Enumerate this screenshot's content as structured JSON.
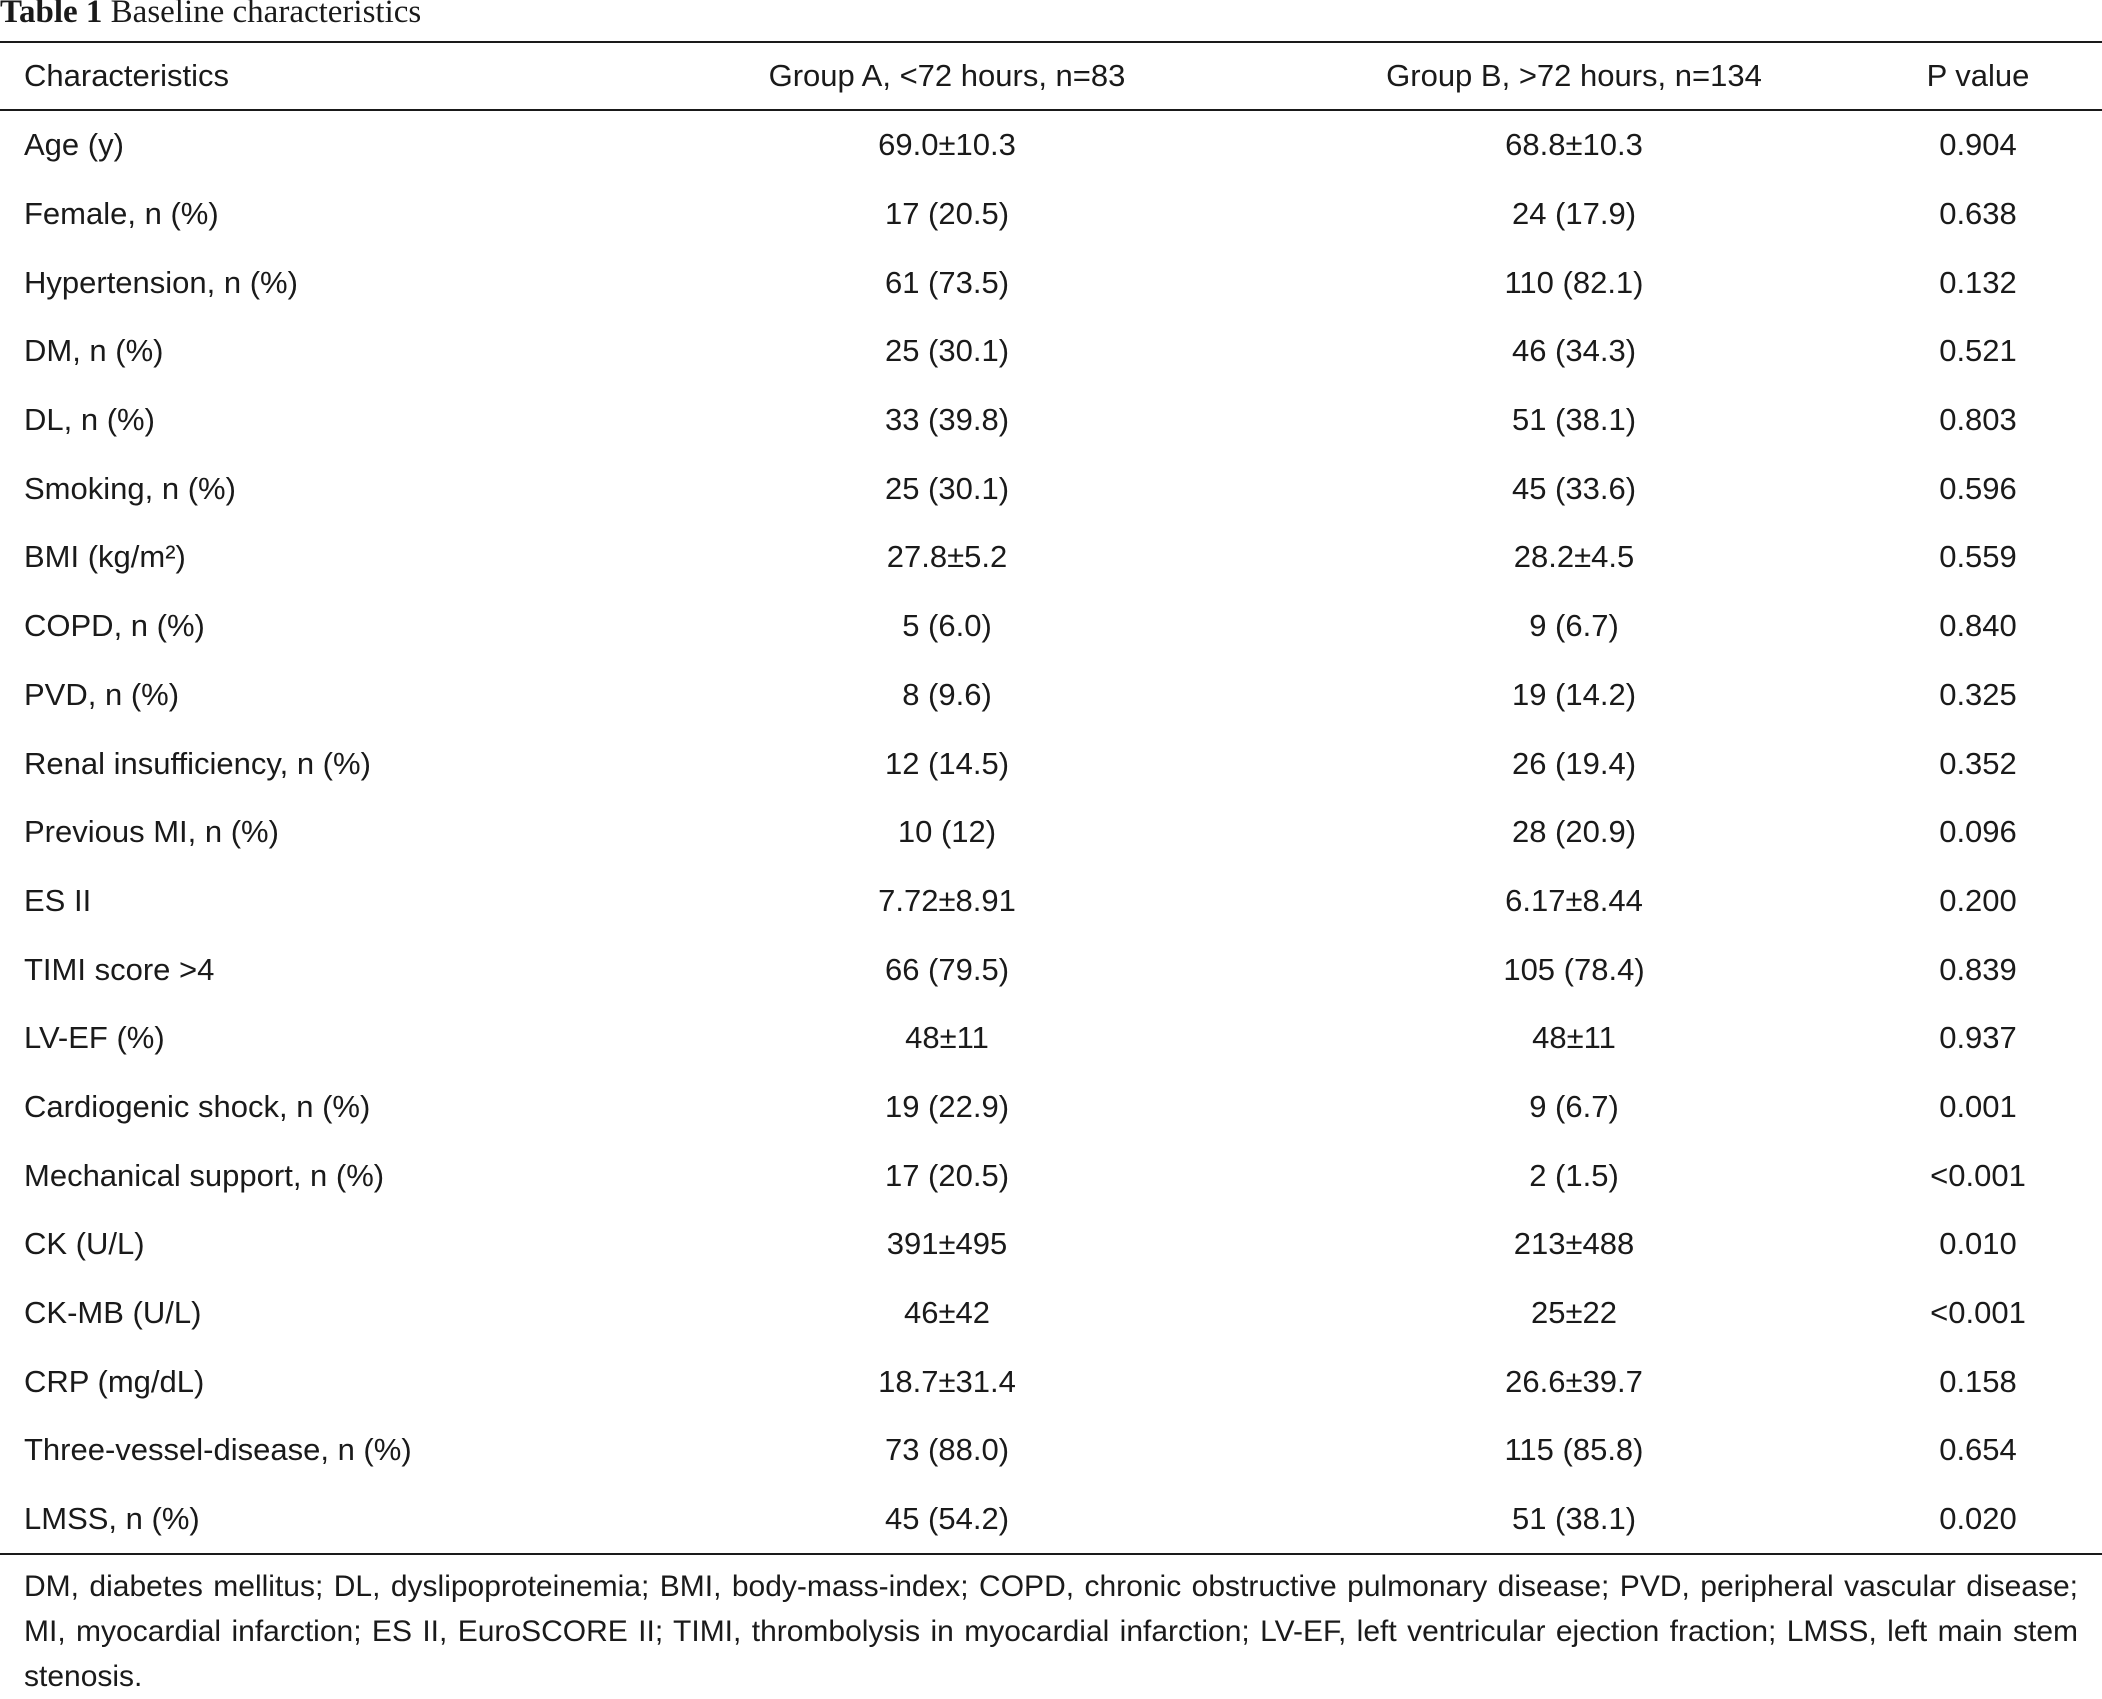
{
  "caption": {
    "label": "Table 1",
    "text": "Baseline characteristics"
  },
  "table": {
    "headers": [
      "Characteristics",
      "Group A, <72 hours, n=83",
      "Group B, >72 hours, n=134",
      "P value"
    ],
    "rows": [
      [
        "Age (y)",
        "69.0±10.3",
        "68.8±10.3",
        "0.904"
      ],
      [
        "Female, n (%)",
        "17 (20.5)",
        "24 (17.9)",
        "0.638"
      ],
      [
        "Hypertension, n (%)",
        "61 (73.5)",
        "110 (82.1)",
        "0.132"
      ],
      [
        "DM, n (%)",
        "25 (30.1)",
        "46 (34.3)",
        "0.521"
      ],
      [
        "DL, n (%)",
        "33 (39.8)",
        "51 (38.1)",
        "0.803"
      ],
      [
        "Smoking, n (%)",
        "25 (30.1)",
        "45 (33.6)",
        "0.596"
      ],
      [
        "BMI (kg/m²)",
        "27.8±5.2",
        "28.2±4.5",
        "0.559"
      ],
      [
        "COPD, n (%)",
        "5 (6.0)",
        "9 (6.7)",
        "0.840"
      ],
      [
        "PVD, n (%)",
        "8 (9.6)",
        "19 (14.2)",
        "0.325"
      ],
      [
        "Renal insufficiency, n (%)",
        "12 (14.5)",
        "26 (19.4)",
        "0.352"
      ],
      [
        "Previous MI, n (%)",
        "10 (12)",
        "28 (20.9)",
        "0.096"
      ],
      [
        "ES II",
        "7.72±8.91",
        "6.17±8.44",
        "0.200"
      ],
      [
        "TIMI score >4",
        "66 (79.5)",
        "105 (78.4)",
        "0.839"
      ],
      [
        "LV-EF (%)",
        "48±11",
        "48±11",
        "0.937"
      ],
      [
        "Cardiogenic shock, n (%)",
        "19 (22.9)",
        "9 (6.7)",
        "0.001"
      ],
      [
        "Mechanical support, n (%)",
        "17 (20.5)",
        "2 (1.5)",
        "<0.001"
      ],
      [
        "CK (U/L)",
        "391±495",
        "213±488",
        "0.010"
      ],
      [
        "CK-MB (U/L)",
        "46±42",
        "25±22",
        "<0.001"
      ],
      [
        "CRP (mg/dL)",
        "18.7±31.4",
        "26.6±39.7",
        "0.158"
      ],
      [
        "Three-vessel-disease, n (%)",
        "73 (88.0)",
        "115 (85.8)",
        "0.654"
      ],
      [
        "LMSS, n (%)",
        "45 (54.2)",
        "51 (38.1)",
        "0.020"
      ]
    ]
  },
  "footnote": "DM, diabetes mellitus; DL, dyslipoproteinemia; BMI, body-mass-index; COPD, chronic obstructive pulmonary disease; PVD, peripheral vascular disease; MI, myocardial infarction; ES II, EuroSCORE II; TIMI, thrombolysis in myocardial infarction; LV-EF, left ventricular ejection fraction; LMSS, left main stem stenosis."
}
